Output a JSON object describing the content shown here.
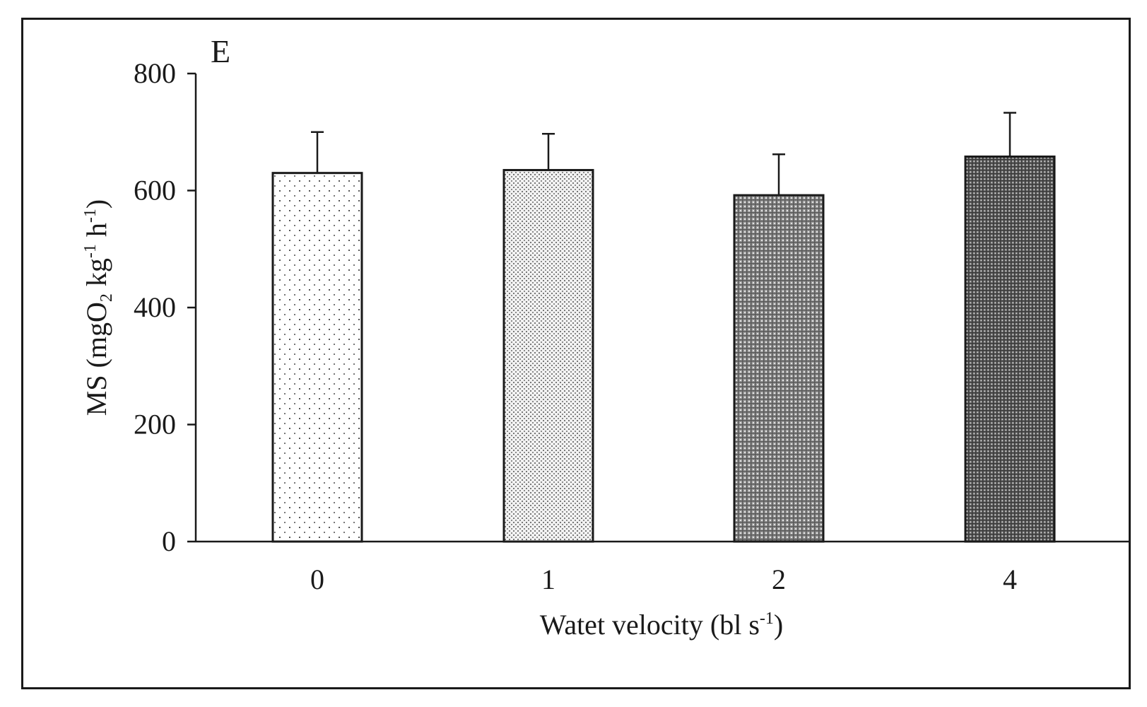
{
  "chart_data": {
    "type": "bar",
    "panel_label": "E",
    "categories": [
      "0",
      "1",
      "2",
      "4"
    ],
    "values": [
      630,
      635,
      592,
      658
    ],
    "errors": [
      70,
      62,
      70,
      75
    ],
    "patterns": [
      "sparse-dots",
      "fine-dots",
      "grid-medium",
      "grid-dense"
    ],
    "xlabel": {
      "main": "Watet velocity (bl s",
      "sup": "-1",
      "close": ")"
    },
    "ylabel": {
      "p1": "MS (mgO",
      "sub": "2",
      "p2": " kg",
      "sup1": "-1",
      "p3": " h",
      "sup2": "-1",
      "p4": ")"
    },
    "ylim": [
      0,
      800
    ],
    "yticks": [
      0,
      200,
      400,
      600,
      800
    ],
    "colors": {
      "ink": "#1a1a1a",
      "background": "#ffffff"
    }
  }
}
